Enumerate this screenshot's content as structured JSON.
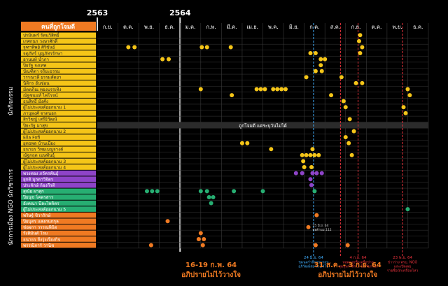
{
  "chart_data": {
    "type": "scatter",
    "years": [
      {
        "label": "2563",
        "month_index": 0
      },
      {
        "label": "2564",
        "month_index": 4
      }
    ],
    "months": [
      "ก.ย.",
      "ต.ค.",
      "พ.ย.",
      "ธ.ค.",
      "ม.ค.",
      "ก.พ.",
      "มี.ค.",
      "เม.ย.",
      "พ.ค.",
      "มิ.ย.",
      "ก.ค.",
      "ส.ค.",
      "ก.ย.",
      "ต.ค.",
      "พ.ย.",
      "ธ.ค."
    ],
    "x_unit": "months since Sep 2563 (0 = ก.ย. 2563)",
    "header_label": "คนที่ถูกโจมตี",
    "group_labels": [
      {
        "label": "นักกิจกรรม",
        "from_row": 0,
        "to_row": 22
      },
      {
        "label": "NGO นักวิชาการ",
        "from_row": 23,
        "to_row": 29
      },
      {
        "label": "นักการเมือง",
        "from_row": 30,
        "to_row": 35
      }
    ],
    "colors": {
      "activist": "#F5C518",
      "academic": "#8E44C8",
      "ngo": "#27AE72",
      "politician": "#F07A22",
      "grid": "#3a3a3a",
      "annotation_blue": "#3FA9F5",
      "annotation_red": "#E8323C",
      "footnote_orange": "#F07A22",
      "band": "#2b2b2b"
    },
    "rows": [
      {
        "name": "ปรมินทร์ รัตนวิสิทธิ์",
        "group": "activist",
        "x": [
          12.7
        ]
      },
      {
        "name": "เกศกนก วงษาศักดิ์",
        "group": "activist",
        "x": [
          12.65
        ]
      },
      {
        "name": "จุฑาทิพย์ ศิริขันธ์",
        "group": "activist",
        "x": [
          1.5,
          1.8,
          5.05,
          5.3,
          6.45,
          12.8
        ]
      },
      {
        "name": "จตุภัทร์ บุญภัทรรักษา",
        "group": "activist",
        "x": [
          10.3,
          10.55,
          12.7
        ]
      },
      {
        "name": "อานนท์ นำภา",
        "group": "activist",
        "x": [
          3.15,
          3.45,
          10.8,
          11.0
        ]
      },
      {
        "name": "ปิยรัฐ จงเทพ",
        "group": "activist",
        "x": [
          10.8
        ]
      },
      {
        "name": "บัณฑิตา จริยะธรรม",
        "group": "activist",
        "x": [
          10.55,
          10.85
        ]
      },
      {
        "name": "วรรณวลี ธรรมสัตยา",
        "group": "activist",
        "x": [
          10.1,
          11.8
        ]
      },
      {
        "name": "นิติกร ฮันช่อน",
        "group": "activist",
        "x": [
          12.5,
          12.8
        ]
      },
      {
        "name": "มัตตภิณ ทองบรรเทิง",
        "group": "activist",
        "x": [
          5.0,
          7.7,
          7.9,
          8.1,
          8.5,
          8.7,
          8.9,
          9.1,
          15.0
        ]
      },
      {
        "name": "ณัฐชนนท์ ไพโรจน์",
        "group": "activist",
        "x": [
          6.5,
          11.3,
          15.1
        ]
      },
      {
        "name": "ธนสิทธิ์ มั่งคั่ง",
        "group": "activist",
        "x": [
          11.9
        ]
      },
      {
        "name": "ผู้ไม่ประสงค์ออกนาม 1",
        "group": "activist",
        "x": [
          12.0,
          14.8
        ]
      },
      {
        "name": "ภานุพงศ์ จาดนอก",
        "group": "activist",
        "x": [
          14.9
        ]
      },
      {
        "name": "สิรวิชญ์ เสรีธิวัฒน์",
        "group": "activist",
        "x": [
          12.2
        ]
      },
      {
        "name": "ปิยะรัฐ มาสุข",
        "group": "activist",
        "x": []
      },
      {
        "name": "ผู้ไม่ประสงค์ออกนาม 2",
        "group": "activist",
        "x": [
          12.4
        ]
      },
      {
        "name": "Ella Fofi",
        "group": "activist",
        "x": [
          12.0
        ]
      },
      {
        "name": "ยุทธพล บ้านเมือง",
        "group": "activist",
        "x": [
          7.0,
          7.25,
          12.15
        ]
      },
      {
        "name": "ธนาธร วิทยเบญจางค์",
        "group": "activist",
        "x": [
          8.4,
          10.4
        ]
      },
      {
        "name": "ณัฐกฤต เมษพันธุ์",
        "group": "activist",
        "x": [
          9.9,
          10.1,
          10.3,
          10.5,
          10.7,
          12.3
        ]
      },
      {
        "name": "ผู้ไม่ประสงค์ออกนาม 3",
        "group": "activist",
        "x": [
          9.95
        ]
      },
      {
        "name": "ผู้ไม่ประสงค์ออกนาม 4",
        "group": "activist",
        "x": [
          10.0,
          10.35
        ]
      },
      {
        "name": "พวงทอง ภวัครพันธุ์",
        "group": "academic",
        "x": [
          9.6,
          9.9,
          10.4,
          10.6,
          10.85
        ]
      },
      {
        "name": "ยุกติ มุกดาวิจิตร",
        "group": "academic",
        "x": [
          10.3
        ]
      },
      {
        "name": "ประจักษ์ ก้องกีรติ",
        "group": "academic",
        "x": [
          10.35
        ]
      },
      {
        "name": "สุณัย ผาสุก",
        "group": "ngo",
        "x": [
          2.4,
          2.65,
          2.9,
          5.0,
          5.3,
          6.6,
          8.0,
          10.5
        ]
      },
      {
        "name": "ปิยนุช โคตรสาร",
        "group": "ngo",
        "x": [
          5.4,
          5.6
        ]
      },
      {
        "name": "อังคณา นีละไพจิตร",
        "group": "ngo",
        "x": [
          5.5
        ]
      },
      {
        "name": "ผู้ไม่ประสงค์ออกนาม 5",
        "group": "ngo",
        "x": [
          15.0
        ]
      },
      {
        "name": "พริษฐ์ ชิวารักษ์",
        "group": "politician",
        "x": [
          10.6
        ]
      },
      {
        "name": "ปิยบุตร แสงกนกกุล",
        "group": "politician",
        "x": [
          3.4
        ]
      },
      {
        "name": "ช่อผกา วรรณพินิจ",
        "group": "politician",
        "x": []
      },
      {
        "name": "รังสิมันต์ โรม",
        "group": "politician",
        "x": [
          5.0
        ]
      },
      {
        "name": "ธนาธร จึงรุ่งเรืองกิจ",
        "group": "politician",
        "x": [
          4.9,
          5.15
        ]
      },
      {
        "name": "พรรณิการ์ วานิช",
        "group": "politician",
        "x": [
          2.6,
          5.1,
          10.55,
          12.1
        ]
      }
    ],
    "band_note": {
      "row": 15,
      "text": "ถูกโจมตี แต่ระบุวันไม่ได้"
    },
    "vlines": [
      {
        "x": 10.45,
        "color": "annotation_blue",
        "label": "24 มิ.ย. 64",
        "sub": [
          "ชุมนุมรำลึกครบรอบ",
          "อภิวัฒน์สยาม 2475"
        ]
      },
      {
        "x": 11.75,
        "color": "annotation_red",
        "label": "",
        "sub": []
      },
      {
        "x": 12.6,
        "color": "annotation_red",
        "label": "4 ก.ย. 64",
        "sub": [
          "หลุดรายชื่อเครือข่าย",
          "ชุมนุมรำลึก 3 ข้อเรียกร้อง"
        ]
      },
      {
        "x": 14.75,
        "color": "annotation_red",
        "label": "23 พ.ย. 64",
        "sub": [
          "ข่าวร่าง พรบ. NGO",
          "และเปิดเผย",
          "รายชื่อนักเคลื่อนไหว"
        ]
      }
    ],
    "callout": {
      "x": 10.2,
      "row": 32,
      "lines": [
        "25 มิ.ย. 64",
        "ต่อต้านม.112"
      ]
    },
    "footnotes": [
      {
        "title": "16-19 ก.พ. 64",
        "sub": "อภิปรายไม่ไว้วางใจ",
        "x": 5.5
      },
      {
        "title": "31 ส.ค. - 3 ก.ย. 64",
        "sub": "อภิปรายไม่ไว้วางใจ",
        "x": 12.1
      }
    ],
    "xlim": [
      0,
      16
    ],
    "grid": true
  }
}
